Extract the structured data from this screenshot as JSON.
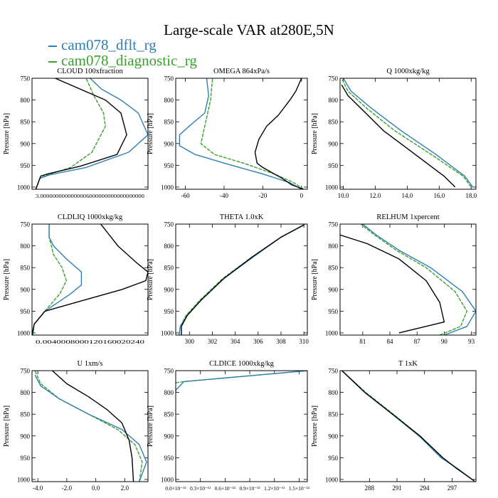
{
  "figure": {
    "title": "Large-scale VAR at280E,5N",
    "legend": [
      {
        "label": "cam078_dflt_rg",
        "color": "#2f7fb7"
      },
      {
        "label": "cam078_diagnostic_rg",
        "color": "#3aa02e"
      }
    ]
  },
  "colors": {
    "dflt": "#2f7fb7",
    "diag": "#3aa02e",
    "obs": "#000000"
  },
  "chart_data": [
    {
      "type": "line",
      "title": "CLOUD  100xfraction",
      "ylabel": "Pressure [hPa]",
      "xlim": [
        0.0,
        0.6
      ],
      "ylim": [
        1005,
        750
      ],
      "xticks": [],
      "xticklabel_text": "3.0000000000000006000000000000000000",
      "yticks": [
        750,
        800,
        850,
        900,
        950,
        1000
      ],
      "series": [
        {
          "name": "obs",
          "x": [
            0.02,
            0.045,
            0.08,
            0.25,
            0.44,
            0.49,
            0.46,
            0.38,
            0.12
          ],
          "y": [
            1005,
            975,
            970,
            952,
            925,
            880,
            830,
            800,
            750
          ]
        },
        {
          "name": "dflt",
          "x": [
            0.02,
            0.04,
            0.09,
            0.28,
            0.5,
            0.6,
            0.55,
            0.46,
            0.36,
            0.3
          ],
          "y": [
            1005,
            980,
            972,
            955,
            920,
            880,
            830,
            800,
            775,
            750
          ]
        },
        {
          "name": "diag",
          "x": [
            0.02,
            0.04,
            0.08,
            0.2,
            0.31,
            0.38,
            0.37,
            0.32,
            0.28
          ],
          "y": [
            1005,
            980,
            972,
            955,
            920,
            860,
            830,
            790,
            750
          ]
        }
      ]
    },
    {
      "type": "line",
      "title": "OMEGA  864xPa/s",
      "ylabel": "Pressure [hPa]",
      "xlim": [
        -65,
        3
      ],
      "ylim": [
        1005,
        750
      ],
      "xticks": [
        -60,
        -40,
        -20,
        0
      ],
      "yticks": [
        750,
        800,
        850,
        900,
        950,
        1000
      ],
      "series": [
        {
          "name": "obs",
          "x": [
            1,
            -5,
            -10,
            -16,
            -20,
            -23,
            -24,
            -22,
            -18,
            -12,
            -6,
            -3,
            -1,
            0
          ],
          "y": [
            1005,
            995,
            980,
            965,
            955,
            945,
            920,
            890,
            860,
            835,
            800,
            780,
            760,
            750
          ]
        },
        {
          "name": "dflt",
          "x": [
            0,
            -6,
            -20,
            -40,
            -55,
            -63,
            -63,
            -58,
            -50,
            -48,
            -49
          ],
          "y": [
            1005,
            990,
            970,
            945,
            925,
            905,
            880,
            860,
            830,
            790,
            750
          ]
        },
        {
          "name": "diag",
          "x": [
            1,
            -4,
            -14,
            -30,
            -45,
            -52,
            -50,
            -47,
            -46
          ],
          "y": [
            1005,
            990,
            970,
            945,
            925,
            900,
            860,
            800,
            750
          ]
        }
      ]
    },
    {
      "type": "line",
      "title": "Q  1000xkg/kg",
      "ylabel": "Pressure [hPa]",
      "xlim": [
        9.8,
        18.3
      ],
      "ylim": [
        1005,
        750
      ],
      "xticks": [
        10,
        12,
        14,
        16,
        18
      ],
      "yticks": [
        750,
        800,
        850,
        900,
        950,
        1000
      ],
      "series": [
        {
          "name": "obs",
          "x": [
            17.0,
            16.3,
            14.5,
            12.5,
            11.4,
            10.3,
            9.9
          ],
          "y": [
            1000,
            975,
            925,
            870,
            830,
            790,
            765
          ]
        },
        {
          "name": "dflt",
          "x": [
            18.1,
            17.6,
            15.8,
            13.6,
            11.8,
            10.5,
            10.0
          ],
          "y": [
            1000,
            975,
            925,
            870,
            820,
            780,
            750
          ]
        },
        {
          "name": "diag",
          "x": [
            18.0,
            17.5,
            15.5,
            13.2,
            11.5,
            10.3,
            9.9
          ],
          "y": [
            1000,
            975,
            925,
            870,
            820,
            780,
            750
          ]
        }
      ]
    },
    {
      "type": "line",
      "title": "CLDLIQ  1000xkg/kg",
      "ylabel": "Pressure [hPa]",
      "xlim": [
        0.0,
        0.27
      ],
      "ylim": [
        1005,
        750
      ],
      "xticks": [],
      "xticklabel_text": "0.0040008000120160020240",
      "yticks": [
        750,
        800,
        850,
        900,
        950,
        1000
      ],
      "series": [
        {
          "name": "obs",
          "x": [
            0.0,
            0.005,
            0.03,
            0.12,
            0.21,
            0.265,
            0.27,
            0.245,
            0.2,
            0.16
          ],
          "y": [
            1005,
            980,
            950,
            925,
            900,
            880,
            860,
            840,
            800,
            750
          ]
        },
        {
          "name": "dflt",
          "x": [
            0.002,
            0.005,
            0.03,
            0.09,
            0.115,
            0.115,
            0.08,
            0.05,
            0.04,
            0.04
          ],
          "y": [
            1005,
            980,
            950,
            910,
            890,
            860,
            830,
            800,
            780,
            750
          ]
        },
        {
          "name": "diag",
          "x": [
            0.002,
            0.005,
            0.03,
            0.065,
            0.08,
            0.07,
            0.05,
            0.04,
            0.04
          ],
          "y": [
            1005,
            980,
            950,
            910,
            880,
            850,
            820,
            780,
            750
          ]
        }
      ]
    },
    {
      "type": "line",
      "title": "THETA  1.0xK",
      "ylabel": "Pressure [hPa]",
      "xlim": [
        298.8,
        310.3
      ],
      "ylim": [
        1005,
        750
      ],
      "xticks": [
        300.0,
        302.0,
        304.0,
        306.0,
        308.0,
        310.0
      ],
      "yticks": [
        750,
        800,
        850,
        900,
        950,
        1000
      ],
      "series": [
        {
          "name": "obs",
          "x": [
            299.3,
            299.3,
            299.8,
            301.0,
            303.0,
            305.5,
            308.0,
            310.0
          ],
          "y": [
            1005,
            985,
            960,
            925,
            875,
            825,
            780,
            752
          ]
        },
        {
          "name": "dflt",
          "x": [
            299.1,
            299.2,
            299.8,
            301.0,
            303.0,
            305.6,
            308.0,
            310.1
          ],
          "y": [
            1005,
            985,
            960,
            925,
            875,
            825,
            780,
            750
          ]
        },
        {
          "name": "diag",
          "x": [
            299.1,
            299.2,
            299.7,
            300.9,
            302.9,
            305.5,
            308.0,
            310.1
          ],
          "y": [
            1005,
            985,
            960,
            925,
            875,
            825,
            780,
            750
          ]
        }
      ]
    },
    {
      "type": "line",
      "title": "RELHUM  1xpercent",
      "ylabel": "Pressure [hPa]",
      "xlim": [
        78.5,
        93.5
      ],
      "ylim": [
        1005,
        750
      ],
      "xticks": [
        81.0,
        84.0,
        87.0,
        90.0,
        93.0
      ],
      "yticks": [
        750,
        800,
        850,
        900,
        950,
        1000
      ],
      "series": [
        {
          "name": "obs",
          "x": [
            85.0,
            90.0,
            89.5,
            88.0,
            85.0,
            81.5,
            78.5
          ],
          "y": [
            1000,
            975,
            930,
            880,
            830,
            795,
            775
          ]
        },
        {
          "name": "dflt",
          "x": [
            90.0,
            92.5,
            93.5,
            92.0,
            88.5,
            85.0,
            82.5,
            81.0
          ],
          "y": [
            1005,
            985,
            950,
            905,
            850,
            810,
            775,
            750
          ]
        },
        {
          "name": "diag",
          "x": [
            89.5,
            91.8,
            92.5,
            91.2,
            88.0,
            84.7,
            82.3,
            80.8
          ],
          "y": [
            1005,
            985,
            950,
            905,
            850,
            810,
            775,
            750
          ]
        }
      ]
    },
    {
      "type": "line",
      "title": "U  1xm/s",
      "ylabel": "Pressure [hPa]",
      "xlim": [
        -4.4,
        3.6
      ],
      "ylim": [
        1005,
        750
      ],
      "xticks": [
        -4.0,
        -2.0,
        0.0,
        2.0
      ],
      "yticks": [
        750,
        800,
        850,
        900,
        950,
        1000
      ],
      "series": [
        {
          "name": "obs",
          "x": [
            2.6,
            2.5,
            2.3,
            1.8,
            0.8,
            -0.5,
            -2.0,
            -3.0
          ],
          "y": [
            1005,
            950,
            910,
            870,
            840,
            810,
            780,
            750
          ]
        },
        {
          "name": "dflt",
          "x": [
            3.0,
            3.5,
            3.0,
            1.8,
            -0.5,
            -2.5,
            -3.8,
            -4.2
          ],
          "y": [
            1005,
            960,
            920,
            885,
            850,
            815,
            785,
            760
          ]
        },
        {
          "name": "diag",
          "x": [
            3.0,
            3.2,
            2.7,
            1.5,
            -0.5,
            -2.5,
            -3.8,
            -4.2
          ],
          "y": [
            1005,
            960,
            920,
            885,
            850,
            815,
            780,
            750
          ]
        }
      ]
    },
    {
      "type": "line",
      "title": "CLDICE  1000xkg/kg",
      "ylabel": "Pressure [hPa]",
      "xlim": [
        0.0,
        1.6e-12
      ],
      "ylim": [
        1005,
        750
      ],
      "xticks": [
        0.0,
        3e-13,
        6e-13,
        9e-13,
        1.2e-12,
        1.5e-12
      ],
      "xticklabels": [
        "0.0×10⁻¹²",
        "0.3×10⁻¹²",
        "0.6×10⁻¹²",
        "0.9×10⁻¹²",
        "1.2×10⁻¹²",
        "1.5×10⁻¹²"
      ],
      "yticks": [
        750,
        800,
        850,
        900,
        950,
        1000
      ],
      "series": [
        {
          "name": "dflt",
          "x": [
            0.0,
            0.0,
            1e-13,
            1.6e-12
          ],
          "y": [
            800,
            795,
            775,
            750
          ]
        },
        {
          "name": "diag",
          "x": [
            0.0,
            6e-14,
            1.6e-12
          ],
          "y": [
            778,
            776,
            750
          ]
        }
      ]
    },
    {
      "type": "line",
      "title": "T  1xK",
      "ylabel": "Pressure [hPa]",
      "xlim": [
        284.8,
        299.6
      ],
      "ylim": [
        1005,
        750
      ],
      "xticks": [
        288,
        291,
        294,
        297
      ],
      "yticks": [
        750,
        800,
        850,
        900,
        950,
        1000
      ],
      "series": [
        {
          "name": "obs",
          "x": [
            285.0,
            287.5,
            290.5,
            293.5,
            296.0,
            297.5,
            299.4
          ],
          "y": [
            750,
            800,
            850,
            900,
            950,
            975,
            1003
          ]
        },
        {
          "name": "dflt",
          "x": [
            285.0,
            287.5,
            290.5,
            293.4,
            295.8,
            297.6,
            299.5
          ],
          "y": [
            750,
            800,
            850,
            900,
            950,
            975,
            1005
          ]
        },
        {
          "name": "diag",
          "x": [
            285.0,
            287.6,
            290.6,
            293.5,
            295.9,
            297.6,
            299.5
          ],
          "y": [
            750,
            800,
            850,
            900,
            950,
            975,
            1005
          ]
        }
      ]
    }
  ]
}
